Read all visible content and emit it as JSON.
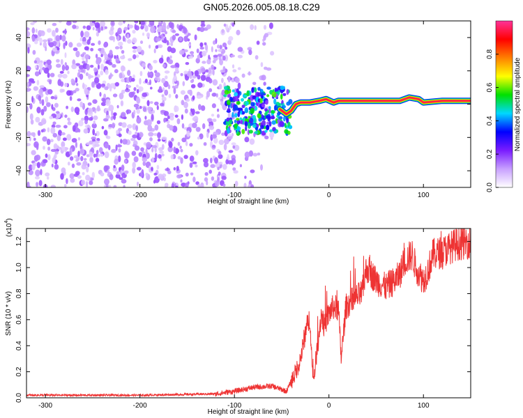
{
  "title": "GN05.2026.005.08.18.C29",
  "chart_data": [
    {
      "type": "heatmap",
      "xlabel": "Height of straight line (km)",
      "ylabel": "Frequency (Hz)",
      "xlim": [
        -320,
        150
      ],
      "ylim": [
        -50,
        50
      ],
      "xticks": [
        -300,
        -200,
        -100,
        0,
        100
      ],
      "xtick_labels": [
        "-300",
        "-200",
        "-100",
        "0",
        "100"
      ],
      "yticks": [
        -40,
        -20,
        0,
        20,
        40
      ],
      "ytick_labels": [
        "-40",
        "-20",
        "0",
        "20",
        "40"
      ],
      "colorbar": {
        "label": "Normalized spectral amplitude",
        "range": [
          0,
          1
        ],
        "ticks": [
          0.0,
          0.2,
          0.4,
          0.6,
          0.8
        ],
        "tick_labels": [
          "0.0",
          "0.2",
          "0.4",
          "0.6",
          "0.8"
        ],
        "colors": [
          "#ffffff",
          "#c8a0ff",
          "#7a1cff",
          "#0000ff",
          "#00d8ff",
          "#00e000",
          "#ffff00",
          "#ff8000",
          "#ff0000",
          "#ff3399"
        ]
      },
      "features": [
        {
          "region": "noise",
          "x_range": [
            -320,
            -60
          ],
          "freq_range": [
            -50,
            50
          ],
          "amplitude": 0.1
        },
        {
          "region": "transition",
          "x_range": [
            -110,
            -40
          ],
          "freq_range": [
            -18,
            10
          ],
          "amplitude": 0.35
        },
        {
          "region": "tone",
          "x_range": [
            -40,
            150
          ],
          "freq_hz": 2,
          "amplitude": 0.9
        }
      ],
      "tone_points": [
        [
          -52,
          -3
        ],
        [
          -45,
          -6
        ],
        [
          -40,
          -4
        ],
        [
          -35,
          0
        ],
        [
          -30,
          1
        ],
        [
          -20,
          1
        ],
        [
          -10,
          2
        ],
        [
          -3,
          3
        ],
        [
          5,
          1
        ],
        [
          10,
          2
        ],
        [
          20,
          2
        ],
        [
          50,
          2
        ],
        [
          75,
          2
        ],
        [
          85,
          4
        ],
        [
          95,
          3
        ],
        [
          100,
          1
        ],
        [
          120,
          2
        ],
        [
          150,
          2
        ]
      ],
      "grid": false,
      "legend": "colorbar right"
    },
    {
      "type": "line",
      "xlabel": "Height of straight line (km)",
      "ylabel": "SNR (10 * v/v)",
      "multiplier_label": "(x10",
      "multiplier_exp": "4",
      "multiplier_close": ")",
      "xlim": [
        -320,
        150
      ],
      "ylim": [
        0,
        1.3
      ],
      "xticks": [
        -300,
        -200,
        -100,
        0,
        100
      ],
      "xtick_labels": [
        "-300",
        "-200",
        "-100",
        "0",
        "100"
      ],
      "yticks": [
        0.0,
        0.2,
        0.4,
        0.6,
        0.8,
        1.0,
        1.2
      ],
      "ytick_labels": [
        "0.0",
        "0.2",
        "0.4",
        "0.6",
        "0.8",
        "1.0",
        "1.2"
      ],
      "color": "#ee3333",
      "x": [
        -320,
        -200,
        -120,
        -100,
        -80,
        -60,
        -45,
        -35,
        -30,
        -25,
        -20,
        -17,
        -12,
        -8,
        -5,
        0,
        5,
        10,
        13,
        18,
        25,
        35,
        40,
        50,
        60,
        70,
        75,
        80,
        88,
        92,
        100,
        105,
        110,
        120,
        135,
        150
      ],
      "values": [
        0.02,
        0.02,
        0.03,
        0.05,
        0.08,
        0.09,
        0.05,
        0.2,
        0.3,
        0.5,
        0.62,
        0.1,
        0.4,
        0.65,
        0.55,
        0.65,
        0.7,
        0.68,
        0.3,
        0.7,
        0.75,
        0.8,
        1.0,
        0.9,
        0.85,
        0.9,
        0.95,
        1.05,
        1.1,
        1.0,
        0.9,
        0.98,
        1.1,
        1.12,
        1.18,
        1.2
      ],
      "grid": false
    }
  ]
}
